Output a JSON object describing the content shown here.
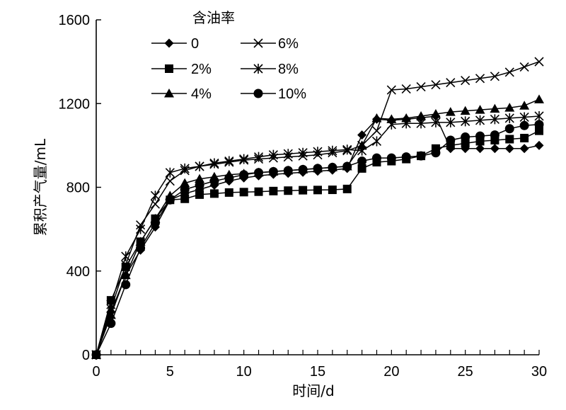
{
  "chart_data": {
    "type": "line",
    "title": "",
    "xlabel": "时间/d",
    "ylabel": "累积产气量/mL",
    "xlim": [
      0,
      30
    ],
    "ylim": [
      0,
      1600
    ],
    "xticks": [
      0,
      5,
      10,
      15,
      20,
      25,
      30
    ],
    "yticks": [
      0,
      400,
      800,
      1200,
      1600
    ],
    "x_tick_labels": [
      "0",
      "5",
      "10",
      "15",
      "20",
      "25",
      "30"
    ],
    "y_tick_labels": [
      "0",
      "400",
      "800",
      "1200",
      "1600"
    ],
    "grid": false,
    "legend_title": "含油率",
    "legend_position": "top-center",
    "x": [
      0,
      1,
      2,
      3,
      4,
      5,
      6,
      7,
      8,
      9,
      10,
      11,
      12,
      13,
      14,
      15,
      16,
      17,
      18,
      19,
      20,
      21,
      22,
      23,
      24,
      25,
      26,
      27,
      28,
      29,
      30
    ],
    "series": [
      {
        "name": "0",
        "marker": "diamond",
        "values": [
          0,
          205,
          380,
          500,
          610,
          740,
          770,
          790,
          810,
          830,
          845,
          855,
          862,
          867,
          872,
          877,
          882,
          890,
          1050,
          1125,
          1120,
          1125,
          1132,
          1140,
          985,
          985,
          985,
          985,
          985,
          985,
          1000
        ]
      },
      {
        "name": "2%",
        "marker": "square",
        "values": [
          0,
          260,
          420,
          540,
          650,
          740,
          745,
          765,
          770,
          775,
          777,
          779,
          782,
          784,
          786,
          787,
          788,
          792,
          890,
          920,
          925,
          935,
          950,
          985,
          1000,
          1010,
          1020,
          1025,
          1030,
          1035,
          1070
        ]
      },
      {
        "name": "4%",
        "marker": "triangle",
        "values": [
          0,
          190,
          380,
          540,
          650,
          760,
          820,
          840,
          850,
          860,
          865,
          870,
          875,
          880,
          885,
          890,
          895,
          900,
          1000,
          1130,
          1125,
          1130,
          1140,
          1150,
          1160,
          1165,
          1170,
          1175,
          1180,
          1190,
          1220
        ]
      },
      {
        "name": "6%",
        "marker": "x",
        "values": [
          0,
          220,
          430,
          620,
          720,
          830,
          880,
          900,
          910,
          920,
          930,
          935,
          940,
          945,
          950,
          955,
          965,
          975,
          1000,
          1070,
          1265,
          1270,
          1280,
          1290,
          1300,
          1310,
          1320,
          1330,
          1350,
          1375,
          1400
        ]
      },
      {
        "name": "8%",
        "marker": "asterisk",
        "values": [
          0,
          240,
          470,
          600,
          760,
          870,
          890,
          900,
          915,
          925,
          935,
          945,
          955,
          960,
          965,
          970,
          975,
          980,
          975,
          1020,
          1100,
          1105,
          1105,
          1110,
          1110,
          1115,
          1120,
          1125,
          1130,
          1135,
          1140
        ]
      },
      {
        "name": "10%",
        "marker": "circle",
        "values": [
          0,
          150,
          335,
          510,
          630,
          740,
          790,
          810,
          830,
          845,
          860,
          870,
          875,
          880,
          885,
          890,
          895,
          900,
          925,
          940,
          940,
          945,
          950,
          965,
          1025,
          1040,
          1045,
          1050,
          1080,
          1095,
          1100
        ]
      }
    ]
  }
}
